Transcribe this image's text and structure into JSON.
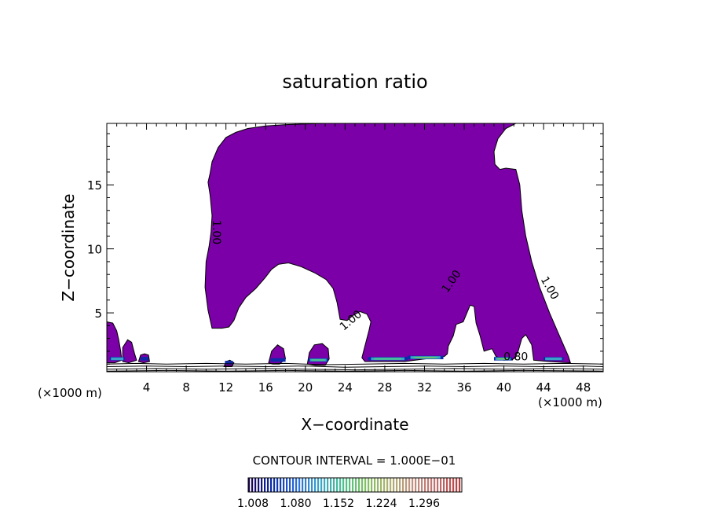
{
  "chart_data": {
    "type": "contour",
    "title": "saturation ratio",
    "xlabel": "X−coordinate",
    "ylabel": "Z−coordinate",
    "x_unit_label": "(×1000 m)",
    "x_unit_label_right": "(×1000 m)",
    "xlim": [
      0,
      50
    ],
    "ylim": [
      0.4,
      19.8
    ],
    "x_ticks": [
      4,
      8,
      12,
      16,
      20,
      24,
      28,
      32,
      36,
      40,
      44,
      48
    ],
    "y_ticks": [
      5,
      10,
      15
    ],
    "contour_interval_text": "CONTOUR INTERVAL = 1.000E−01",
    "contour_labels": [
      {
        "text": "1.00",
        "x": 10.7,
        "y": 11.3
      },
      {
        "text": "1.00",
        "x": 24.8,
        "y": 4.2
      },
      {
        "text": "1.00",
        "x": 35.0,
        "y": 7.3
      },
      {
        "text": "1.00",
        "x": 44.3,
        "y": 6.8
      },
      {
        "text": "0.80",
        "x": 41.2,
        "y": 1.3
      }
    ],
    "colorbar": {
      "ticks": [
        "1.008",
        "1.080",
        "1.152",
        "1.224",
        "1.296"
      ],
      "min": 1.008,
      "max": 1.35,
      "colors": [
        "#1a0050",
        "#0a2aa8",
        "#2a6ad8",
        "#3aa2c8",
        "#4ac090",
        "#80c060",
        "#b0b070",
        "#c09080",
        "#c07070",
        "#b84040"
      ]
    },
    "supersaturated_region": {
      "value": ">= 1.00",
      "color": "#7b00a8",
      "boundary": [
        [
          10.6,
          3.8
        ],
        [
          10.2,
          5.2
        ],
        [
          9.9,
          7.0
        ],
        [
          10.0,
          9.0
        ],
        [
          10.3,
          10.2
        ],
        [
          10.5,
          11.3
        ],
        [
          10.6,
          12.6
        ],
        [
          10.4,
          14.2
        ],
        [
          10.2,
          15.2
        ],
        [
          10.4,
          15.9
        ],
        [
          10.6,
          16.8
        ],
        [
          11.2,
          17.9
        ],
        [
          12.0,
          18.7
        ],
        [
          13.0,
          19.1
        ],
        [
          14.2,
          19.4
        ],
        [
          16.0,
          19.6
        ],
        [
          18.0,
          19.7
        ],
        [
          22.0,
          19.8
        ],
        [
          30.0,
          19.8
        ],
        [
          38.0,
          19.8
        ],
        [
          41.2,
          19.8
        ],
        [
          40.2,
          19.4
        ],
        [
          39.4,
          18.6
        ],
        [
          39.0,
          17.6
        ],
        [
          39.1,
          16.6
        ],
        [
          39.6,
          16.2
        ],
        [
          40.2,
          16.3
        ],
        [
          41.2,
          16.2
        ],
        [
          41.6,
          15.0
        ],
        [
          41.8,
          13.0
        ],
        [
          42.2,
          11.0
        ],
        [
          42.8,
          9.0
        ],
        [
          43.6,
          7.0
        ],
        [
          44.6,
          5.0
        ],
        [
          45.6,
          3.2
        ],
        [
          46.5,
          1.6
        ],
        [
          46.7,
          1.1
        ],
        [
          44.5,
          1.2
        ],
        [
          43.0,
          1.3
        ],
        [
          42.8,
          2.5
        ],
        [
          42.2,
          3.3
        ],
        [
          41.8,
          3.0
        ],
        [
          41.4,
          1.9
        ],
        [
          41.0,
          1.4
        ],
        [
          40.0,
          1.3
        ],
        [
          39.2,
          1.6
        ],
        [
          38.8,
          2.2
        ],
        [
          38.0,
          2.0
        ],
        [
          37.6,
          3.2
        ],
        [
          37.2,
          4.2
        ],
        [
          37.0,
          5.5
        ],
        [
          36.6,
          5.6
        ],
        [
          35.9,
          4.3
        ],
        [
          35.2,
          4.1
        ],
        [
          34.9,
          3.2
        ],
        [
          34.4,
          2.4
        ],
        [
          34.3,
          1.8
        ],
        [
          34.0,
          1.6
        ],
        [
          30.0,
          1.2
        ],
        [
          26.0,
          1.2
        ],
        [
          25.7,
          1.5
        ],
        [
          26.0,
          2.4
        ],
        [
          26.4,
          3.6
        ],
        [
          26.6,
          4.3
        ],
        [
          26.2,
          4.9
        ],
        [
          25.5,
          5.1
        ],
        [
          24.8,
          4.8
        ],
        [
          24.2,
          4.4
        ],
        [
          23.5,
          4.5
        ],
        [
          23.2,
          5.8
        ],
        [
          22.8,
          6.9
        ],
        [
          22.1,
          7.6
        ],
        [
          21.0,
          8.1
        ],
        [
          19.6,
          8.6
        ],
        [
          18.3,
          8.9
        ],
        [
          17.3,
          8.8
        ],
        [
          16.6,
          8.4
        ],
        [
          15.9,
          7.7
        ],
        [
          15.0,
          6.9
        ],
        [
          14.0,
          6.2
        ],
        [
          13.3,
          5.4
        ],
        [
          12.8,
          4.4
        ],
        [
          12.3,
          3.9
        ],
        [
          11.6,
          3.8
        ]
      ]
    },
    "small_cells": [
      {
        "boundary": [
          [
            0.0,
            1.1
          ],
          [
            0.0,
            4.3
          ],
          [
            0.6,
            4.2
          ],
          [
            1.0,
            3.6
          ],
          [
            1.2,
            2.9
          ],
          [
            1.4,
            2.0
          ],
          [
            1.5,
            1.3
          ],
          [
            0.8,
            1.1
          ]
        ]
      },
      {
        "boundary": [
          [
            1.6,
            1.2
          ],
          [
            1.6,
            2.3
          ],
          [
            2.1,
            2.9
          ],
          [
            2.5,
            2.7
          ],
          [
            2.8,
            1.8
          ],
          [
            3.0,
            1.3
          ],
          [
            2.2,
            1.1
          ]
        ]
      },
      {
        "boundary": [
          [
            3.2,
            1.2
          ],
          [
            3.4,
            1.7
          ],
          [
            3.8,
            1.8
          ],
          [
            4.2,
            1.7
          ],
          [
            4.3,
            1.2
          ],
          [
            3.7,
            1.1
          ]
        ]
      },
      {
        "boundary": [
          [
            11.8,
            0.8
          ],
          [
            12.0,
            1.2
          ],
          [
            12.4,
            1.3
          ],
          [
            12.8,
            1.1
          ],
          [
            12.6,
            0.8
          ]
        ]
      },
      {
        "boundary": [
          [
            16.3,
            1.1
          ],
          [
            16.6,
            2.0
          ],
          [
            17.2,
            2.5
          ],
          [
            17.8,
            2.2
          ],
          [
            18.0,
            1.4
          ],
          [
            17.4,
            1.0
          ],
          [
            16.7,
            1.0
          ]
        ]
      },
      {
        "boundary": [
          [
            20.2,
            1.0
          ],
          [
            20.4,
            1.9
          ],
          [
            20.9,
            2.5
          ],
          [
            21.7,
            2.6
          ],
          [
            22.3,
            2.2
          ],
          [
            22.4,
            1.4
          ],
          [
            22.0,
            0.9
          ],
          [
            21.0,
            0.9
          ]
        ]
      }
    ],
    "surface_contours": [
      [
        [
          0,
          1.0
        ],
        [
          3,
          1.05
        ],
        [
          6,
          1.0
        ],
        [
          10,
          1.05
        ],
        [
          14,
          1.0
        ],
        [
          18,
          1.05
        ],
        [
          22,
          0.95
        ],
        [
          26,
          1.0
        ],
        [
          30,
          1.05
        ],
        [
          34,
          1.0
        ],
        [
          38,
          1.05
        ],
        [
          42,
          1.0
        ],
        [
          46,
          1.05
        ],
        [
          50,
          1.0
        ]
      ],
      [
        [
          0,
          0.8
        ],
        [
          4,
          0.85
        ],
        [
          8,
          0.8
        ],
        [
          12,
          0.85
        ],
        [
          16,
          0.8
        ],
        [
          20,
          0.85
        ],
        [
          24,
          0.75
        ],
        [
          28,
          0.8
        ],
        [
          32,
          0.85
        ],
        [
          36,
          0.8
        ],
        [
          40,
          0.85
        ],
        [
          44,
          0.8
        ],
        [
          48,
          0.85
        ],
        [
          50,
          0.8
        ]
      ],
      [
        [
          0,
          0.6
        ],
        [
          5,
          0.65
        ],
        [
          10,
          0.6
        ],
        [
          15,
          0.65
        ],
        [
          20,
          0.6
        ],
        [
          25,
          0.55
        ],
        [
          30,
          0.6
        ],
        [
          35,
          0.65
        ],
        [
          40,
          0.6
        ],
        [
          45,
          0.65
        ],
        [
          50,
          0.6
        ]
      ],
      [
        [
          0,
          0.45
        ],
        [
          6,
          0.5
        ],
        [
          12,
          0.45
        ],
        [
          18,
          0.5
        ],
        [
          24,
          0.45
        ],
        [
          30,
          0.5
        ],
        [
          36,
          0.45
        ],
        [
          42,
          0.5
        ],
        [
          50,
          0.45
        ]
      ]
    ],
    "high_ratio_patches": [
      {
        "x": 0.3,
        "z": 1.4,
        "w": 1.5,
        "level": 2
      },
      {
        "x": 3.4,
        "z": 1.4,
        "w": 0.8,
        "level": 1
      },
      {
        "x": 11.9,
        "z": 1.1,
        "w": 0.8,
        "level": 1
      },
      {
        "x": 16.5,
        "z": 1.3,
        "w": 1.5,
        "level": 1
      },
      {
        "x": 20.3,
        "z": 1.3,
        "w": 2.0,
        "level": 3
      },
      {
        "x": 26.3,
        "z": 1.4,
        "w": 4.0,
        "level": 3
      },
      {
        "x": 30.3,
        "z": 1.5,
        "w": 3.6,
        "level": 5
      },
      {
        "x": 39.0,
        "z": 1.4,
        "w": 1.8,
        "level": 4
      },
      {
        "x": 44.0,
        "z": 1.4,
        "w": 2.0,
        "level": 2
      }
    ]
  }
}
